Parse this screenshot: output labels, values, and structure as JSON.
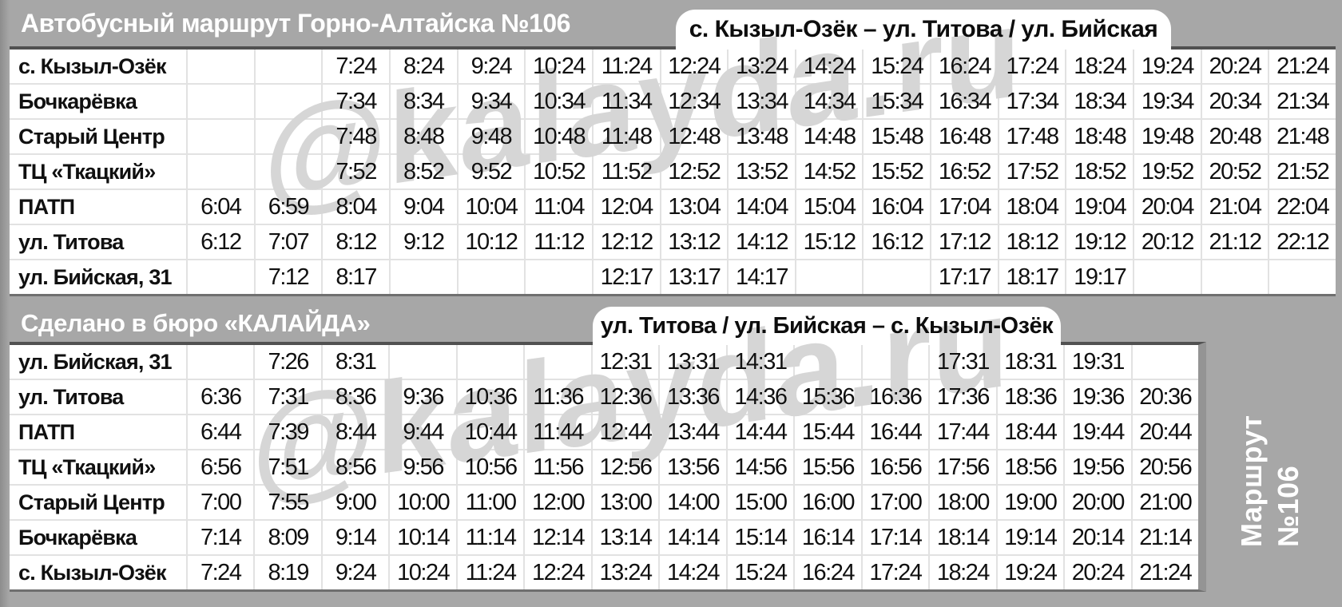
{
  "header": {
    "title": "Автобусный маршрут Горно-Алтайска №106"
  },
  "footer_band": {
    "credit": "Сделано в бюро «КАЛАЙДА»"
  },
  "side_label": {
    "line1": "Маршрут",
    "line2": "№106"
  },
  "watermark": {
    "text": "@kalayda.ru"
  },
  "colors": {
    "background": "#a7a7a7",
    "cell": "#ffffff",
    "grid_line": "#e2e2e2",
    "text": "#101010",
    "header_text": "#ffffff",
    "direction_box": "#ffffff",
    "watermark": "#d6d6d6"
  },
  "tables": [
    {
      "direction": "с. Кызыл-Озёк – ул. Титова / ул. Бийская",
      "columns": 17,
      "rows": [
        {
          "station": "с. Кызыл-Озёк",
          "times": [
            "",
            "",
            "7:24",
            "8:24",
            "9:24",
            "10:24",
            "11:24",
            "12:24",
            "13:24",
            "14:24",
            "15:24",
            "16:24",
            "17:24",
            "18:24",
            "19:24",
            "20:24",
            "21:24"
          ]
        },
        {
          "station": "Бочкарёвка",
          "times": [
            "",
            "",
            "7:34",
            "8:34",
            "9:34",
            "10:34",
            "11:34",
            "12:34",
            "13:34",
            "14:34",
            "15:34",
            "16:34",
            "17:34",
            "18:34",
            "19:34",
            "20:34",
            "21:34"
          ]
        },
        {
          "station": "Старый Центр",
          "times": [
            "",
            "",
            "7:48",
            "8:48",
            "9:48",
            "10:48",
            "11:48",
            "12:48",
            "13:48",
            "14:48",
            "15:48",
            "16:48",
            "17:48",
            "18:48",
            "19:48",
            "20:48",
            "21:48"
          ]
        },
        {
          "station": "ТЦ «Ткацкий»",
          "times": [
            "",
            "",
            "7:52",
            "8:52",
            "9:52",
            "10:52",
            "11:52",
            "12:52",
            "13:52",
            "14:52",
            "15:52",
            "16:52",
            "17:52",
            "18:52",
            "19:52",
            "20:52",
            "21:52"
          ]
        },
        {
          "station": "ПАТП",
          "times": [
            "6:04",
            "6:59",
            "8:04",
            "9:04",
            "10:04",
            "11:04",
            "12:04",
            "13:04",
            "14:04",
            "15:04",
            "16:04",
            "17:04",
            "18:04",
            "19:04",
            "20:04",
            "21:04",
            "22:04"
          ]
        },
        {
          "station": "ул. Титова",
          "times": [
            "6:12",
            "7:07",
            "8:12",
            "9:12",
            "10:12",
            "11:12",
            "12:12",
            "13:12",
            "14:12",
            "15:12",
            "16:12",
            "17:12",
            "18:12",
            "19:12",
            "20:12",
            "21:12",
            "22:12"
          ]
        },
        {
          "station": "ул. Бийская, 31",
          "times": [
            "",
            "7:12",
            "8:17",
            "",
            "",
            "",
            "12:17",
            "13:17",
            "14:17",
            "",
            "",
            "17:17",
            "18:17",
            "19:17",
            "",
            "",
            ""
          ]
        }
      ]
    },
    {
      "direction": "ул. Титова / ул. Бийская – с. Кызыл-Озёк",
      "columns": 15,
      "rows": [
        {
          "station": "ул. Бийская, 31",
          "times": [
            "",
            "7:26",
            "8:31",
            "",
            "",
            "",
            "12:31",
            "13:31",
            "14:31",
            "",
            "",
            "17:31",
            "18:31",
            "19:31",
            ""
          ]
        },
        {
          "station": "ул. Титова",
          "times": [
            "6:36",
            "7:31",
            "8:36",
            "9:36",
            "10:36",
            "11:36",
            "12:36",
            "13:36",
            "14:36",
            "15:36",
            "16:36",
            "17:36",
            "18:36",
            "19:36",
            "20:36"
          ]
        },
        {
          "station": "ПАТП",
          "times": [
            "6:44",
            "7:39",
            "8:44",
            "9:44",
            "10:44",
            "11:44",
            "12:44",
            "13:44",
            "14:44",
            "15:44",
            "16:44",
            "17:44",
            "18:44",
            "19:44",
            "20:44"
          ]
        },
        {
          "station": "ТЦ «Ткацкий»",
          "times": [
            "6:56",
            "7:51",
            "8:56",
            "9:56",
            "10:56",
            "11:56",
            "12:56",
            "13:56",
            "14:56",
            "15:56",
            "16:56",
            "17:56",
            "18:56",
            "19:56",
            "20:56"
          ]
        },
        {
          "station": "Старый Центр",
          "times": [
            "7:00",
            "7:55",
            "9:00",
            "10:00",
            "11:00",
            "12:00",
            "13:00",
            "14:00",
            "15:00",
            "16:00",
            "17:00",
            "18:00",
            "19:00",
            "20:00",
            "21:00"
          ]
        },
        {
          "station": "Бочкарёвка",
          "times": [
            "7:14",
            "8:09",
            "9:14",
            "10:14",
            "11:14",
            "12:14",
            "13:14",
            "14:14",
            "15:14",
            "16:14",
            "17:14",
            "18:14",
            "19:14",
            "20:14",
            "21:14"
          ]
        },
        {
          "station": "с. Кызыл-Озёк",
          "times": [
            "7:24",
            "8:19",
            "9:24",
            "10:24",
            "11:24",
            "12:24",
            "13:24",
            "14:24",
            "15:24",
            "16:24",
            "17:24",
            "18:24",
            "19:24",
            "20:24",
            "21:24"
          ]
        }
      ]
    }
  ]
}
